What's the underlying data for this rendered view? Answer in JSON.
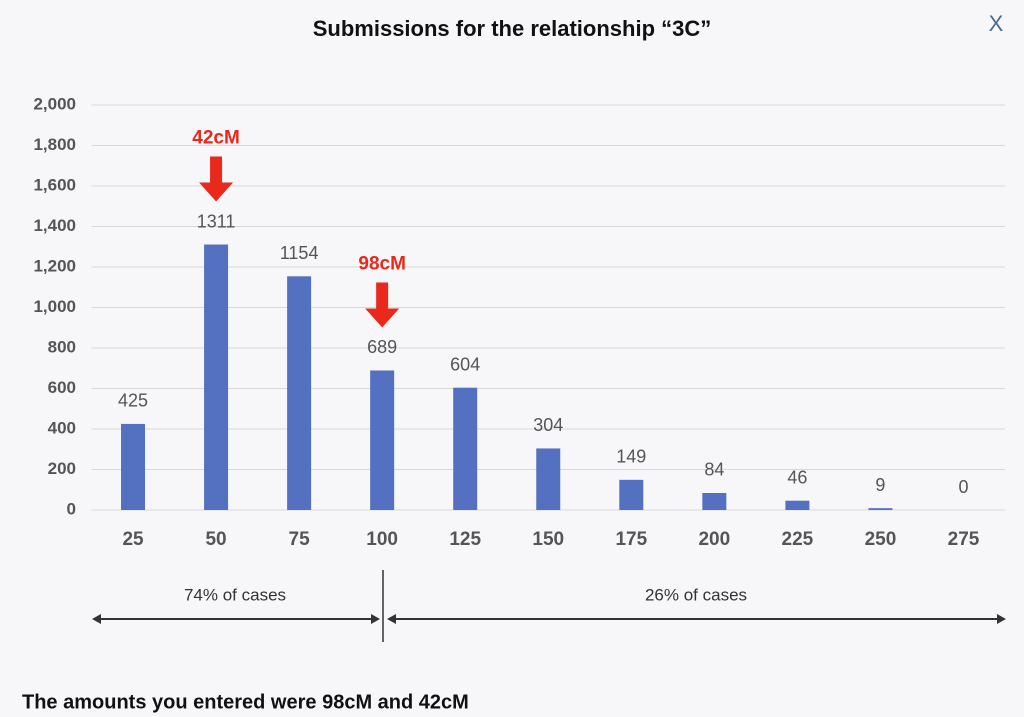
{
  "close_label": "X",
  "chart_data": {
    "type": "bar",
    "title": "Submissions for the relationship “3C”",
    "categories": [
      "25",
      "50",
      "75",
      "100",
      "125",
      "150",
      "175",
      "200",
      "225",
      "250",
      "275"
    ],
    "values": [
      425,
      1311,
      1154,
      689,
      604,
      304,
      149,
      84,
      46,
      9,
      0
    ],
    "color": "#5470c0",
    "grid": true,
    "ylim": [
      0,
      2000
    ],
    "yticks": [
      0,
      200,
      400,
      600,
      800,
      {
        "value": 1000,
        "label": "1,000"
      },
      {
        "value": 1200,
        "label": "1,200"
      },
      {
        "value": 1400,
        "label": "1,400"
      },
      {
        "value": 1600,
        "label": "1,600"
      },
      {
        "value": 1800,
        "label": "1,800"
      },
      {
        "value": 2000,
        "label": "2,000"
      }
    ],
    "annotations": [
      {
        "text": "42cM",
        "x": "50"
      },
      {
        "text": "98cM",
        "x": "100"
      }
    ],
    "ranges": {
      "left": "74% of cases",
      "right": "26% of cases"
    }
  },
  "footer": "The amounts you entered were 98cM and 42cM"
}
